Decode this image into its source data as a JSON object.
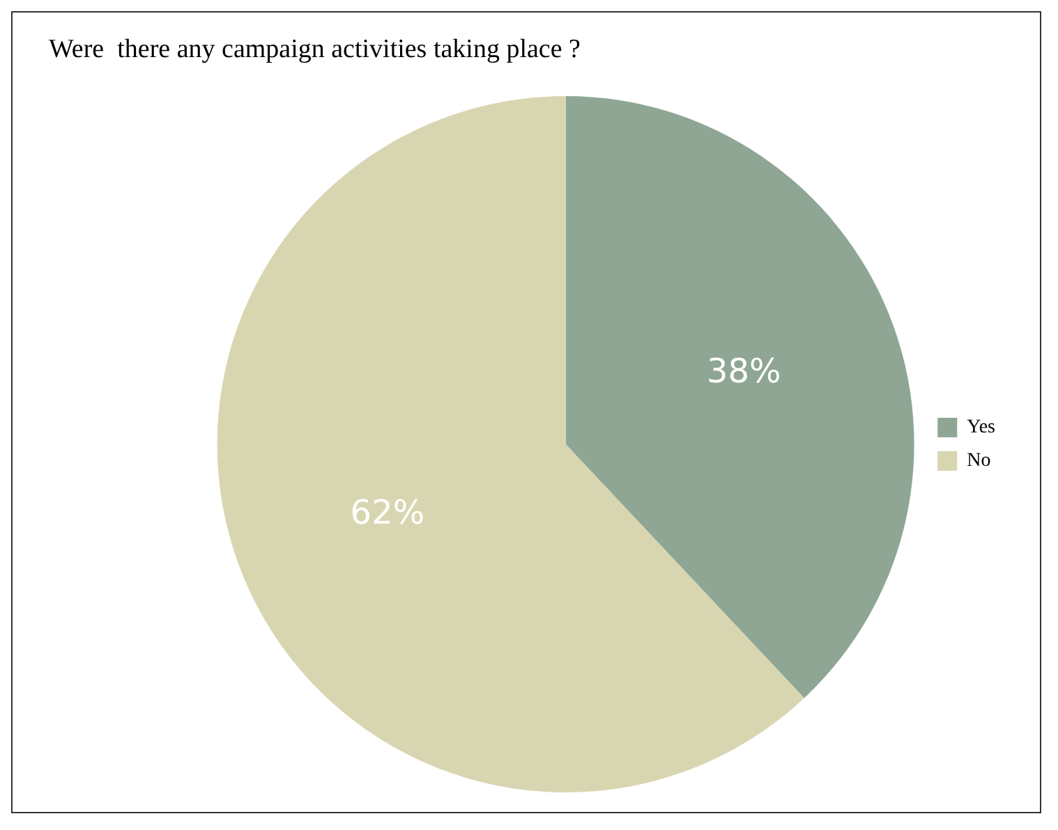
{
  "chart_data": {
    "type": "pie",
    "title": "Were  there any campaign activities taking place ?",
    "categories": [
      "Yes",
      "No"
    ],
    "values": [
      38,
      62
    ],
    "colors": [
      "#8ea693",
      "#d8d6b0"
    ],
    "value_labels": [
      "38%",
      "62%"
    ],
    "legend": "right"
  }
}
